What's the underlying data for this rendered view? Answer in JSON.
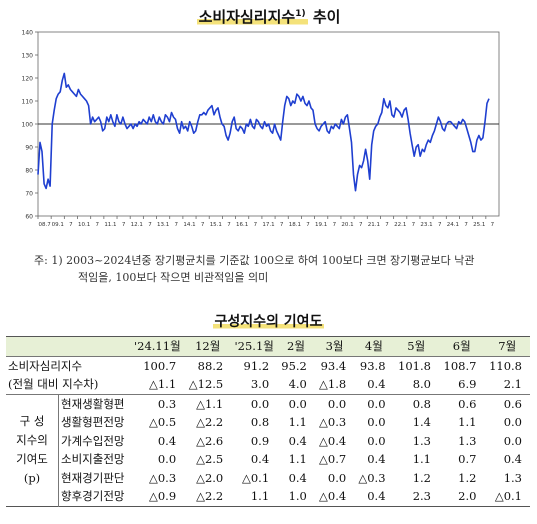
{
  "title": {
    "main": "소비자심리지수",
    "sup": "1)",
    "suffix": "추이"
  },
  "chart_data": {
    "type": "line",
    "yticks": [
      60,
      70,
      80,
      90,
      100,
      110,
      120,
      130,
      140
    ],
    "ylim": [
      60,
      140
    ],
    "xticks": [
      "08.7",
      "09.1",
      "7",
      "10.1",
      "7",
      "11.1",
      "7",
      "12.1",
      "7",
      "13.1",
      "7",
      "14.1",
      "7",
      "15.1",
      "7",
      "16.1",
      "7",
      "17.1",
      "7",
      "18.1",
      "7",
      "19.1",
      "7",
      "20.1",
      "7",
      "21.1",
      "7",
      "22.1",
      "7",
      "23.1",
      "7",
      "24.1",
      "7",
      "25.1",
      "7"
    ],
    "reference_line": 100,
    "series": [
      {
        "values": [
          78,
          92,
          88,
          74,
          72,
          76,
          73,
          100,
          106,
          111,
          113,
          114,
          119,
          122,
          116,
          117,
          115,
          114,
          113,
          112,
          115,
          113,
          112,
          111,
          110,
          108,
          100,
          103,
          101,
          102,
          103,
          101,
          97,
          98,
          103,
          101,
          104,
          101,
          99,
          104,
          101,
          100,
          103,
          100,
          98,
          99,
          100,
          98,
          100,
          99,
          101,
          100,
          102,
          101,
          100,
          103,
          101,
          104,
          101,
          100,
          103,
          101,
          100,
          104,
          103,
          101,
          105,
          103,
          102,
          98,
          96,
          101,
          98,
          99,
          97,
          101,
          99,
          96,
          97,
          101,
          104,
          104,
          105,
          104,
          106,
          107,
          108,
          104,
          106,
          107,
          103,
          100,
          99,
          95,
          93,
          96,
          101,
          103,
          98,
          97,
          99,
          98,
          96,
          100,
          99,
          102,
          99,
          98,
          102,
          101,
          99,
          98,
          101,
          99,
          100,
          97,
          96,
          100,
          97,
          95,
          93,
          101,
          108,
          112,
          111,
          108,
          110,
          109,
          113,
          112,
          110,
          112,
          109,
          108,
          110,
          107,
          106,
          100,
          98,
          97,
          99,
          100,
          101,
          97,
          96,
          99,
          98,
          100,
          99,
          98,
          102,
          100,
          103,
          104,
          98,
          92,
          78,
          71,
          78,
          82,
          81,
          84,
          89,
          84,
          76,
          91,
          97,
          99,
          100,
          103,
          105,
          111,
          108,
          107,
          110,
          104,
          103,
          107,
          106,
          105,
          103,
          106,
          107,
          102,
          96,
          91,
          86,
          90,
          91,
          86,
          89,
          88,
          91,
          93,
          92,
          95,
          97,
          100,
          103,
          101,
          98,
          97,
          100,
          101,
          101,
          100,
          99,
          98,
          101,
          100,
          102,
          101,
          98,
          95,
          92,
          88,
          88,
          93,
          95,
          93,
          94,
          101,
          109,
          111
        ]
      }
    ]
  },
  "note": {
    "line1": "주: 1) 2003~2024년중 장기평균치를 기준값 100으로 하여 100보다 크면 장기평균보다 낙관",
    "line2": "적임을, 100보다 작으면 비관적임을 의미"
  },
  "table": {
    "title": "구성지수의 기여도",
    "columns": [
      "'24.11월",
      "12월",
      "'25.1월",
      "2월",
      "3월",
      "4월",
      "5월",
      "6월",
      "7월"
    ],
    "rows": {
      "csi": {
        "label": "소비자심리지수",
        "values": [
          "100.7",
          "88.2",
          "91.2",
          "95.2",
          "93.4",
          "93.8",
          "101.8",
          "108.7",
          "110.8"
        ]
      },
      "diff": {
        "label": "(전월 대비 지수차)",
        "values": [
          "△1.1",
          "△12.5",
          "3.0",
          "4.0",
          "△1.8",
          "0.4",
          "8.0",
          "6.9",
          "2.1"
        ]
      },
      "group_label": {
        "line1": "구  성",
        "line2": "지수의",
        "line3": "기여도",
        "line4": "(p)"
      },
      "c1": {
        "label": "현재생활형편",
        "values": [
          "0.3",
          "△1.1",
          "0.0",
          "0.0",
          "0.0",
          "0.0",
          "0.8",
          "0.6",
          "0.6"
        ]
      },
      "c2": {
        "label": "생활형편전망",
        "values": [
          "△0.5",
          "△2.2",
          "0.8",
          "1.1",
          "△0.3",
          "0.0",
          "1.4",
          "1.1",
          "0.0"
        ]
      },
      "c3": {
        "label": "가계수입전망",
        "values": [
          "0.4",
          "△2.6",
          "0.9",
          "0.4",
          "△0.4",
          "0.0",
          "1.3",
          "1.3",
          "0.0"
        ]
      },
      "c4": {
        "label": "소비지출전망",
        "values": [
          "0.0",
          "△2.5",
          "0.4",
          "1.1",
          "△0.7",
          "0.4",
          "1.1",
          "0.7",
          "0.4"
        ]
      },
      "c5": {
        "label": "현재경기판단",
        "values": [
          "△0.3",
          "△2.0",
          "△0.1",
          "0.4",
          "0.0",
          "△0.3",
          "1.2",
          "1.2",
          "1.3"
        ]
      },
      "c6": {
        "label": "향후경기전망",
        "values": [
          "△0.9",
          "△2.2",
          "1.1",
          "1.0",
          "△0.4",
          "0.4",
          "2.3",
          "2.0",
          "△0.1"
        ]
      }
    }
  }
}
